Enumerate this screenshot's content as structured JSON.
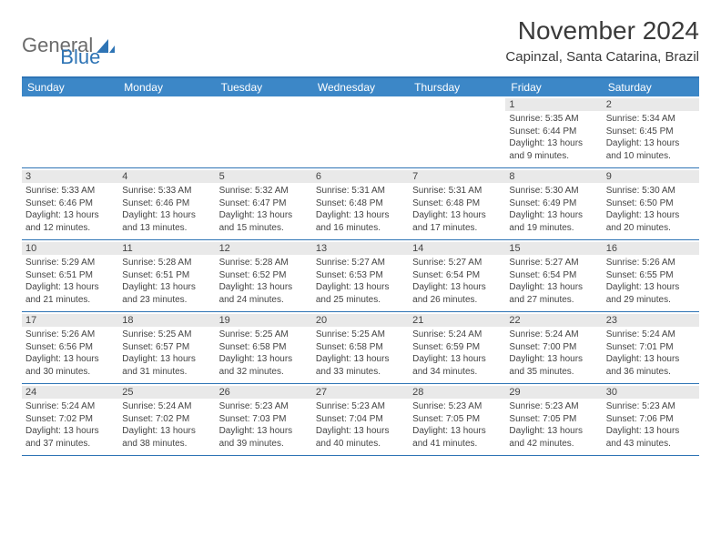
{
  "brand": {
    "general": "General",
    "blue": "Blue"
  },
  "title": "November 2024",
  "location": "Capinzal, Santa Catarina, Brazil",
  "colors": {
    "accent": "#2e74b5",
    "header_bg": "#3c87c7",
    "band_bg": "#e9e9e9",
    "text": "#444444",
    "border": "#2e74b5"
  },
  "typography": {
    "title_size": 28,
    "location_size": 15,
    "dow_size": 12,
    "body_size": 10
  },
  "calendar": {
    "type": "table",
    "dow": [
      "Sunday",
      "Monday",
      "Tuesday",
      "Wednesday",
      "Thursday",
      "Friday",
      "Saturday"
    ],
    "weeks": [
      [
        {
          "blank": true
        },
        {
          "blank": true
        },
        {
          "blank": true
        },
        {
          "blank": true
        },
        {
          "blank": true
        },
        {
          "n": "1",
          "sunrise": "Sunrise: 5:35 AM",
          "sunset": "Sunset: 6:44 PM",
          "daylight": "Daylight: 13 hours and 9 minutes."
        },
        {
          "n": "2",
          "sunrise": "Sunrise: 5:34 AM",
          "sunset": "Sunset: 6:45 PM",
          "daylight": "Daylight: 13 hours and 10 minutes."
        }
      ],
      [
        {
          "n": "3",
          "sunrise": "Sunrise: 5:33 AM",
          "sunset": "Sunset: 6:46 PM",
          "daylight": "Daylight: 13 hours and 12 minutes."
        },
        {
          "n": "4",
          "sunrise": "Sunrise: 5:33 AM",
          "sunset": "Sunset: 6:46 PM",
          "daylight": "Daylight: 13 hours and 13 minutes."
        },
        {
          "n": "5",
          "sunrise": "Sunrise: 5:32 AM",
          "sunset": "Sunset: 6:47 PM",
          "daylight": "Daylight: 13 hours and 15 minutes."
        },
        {
          "n": "6",
          "sunrise": "Sunrise: 5:31 AM",
          "sunset": "Sunset: 6:48 PM",
          "daylight": "Daylight: 13 hours and 16 minutes."
        },
        {
          "n": "7",
          "sunrise": "Sunrise: 5:31 AM",
          "sunset": "Sunset: 6:48 PM",
          "daylight": "Daylight: 13 hours and 17 minutes."
        },
        {
          "n": "8",
          "sunrise": "Sunrise: 5:30 AM",
          "sunset": "Sunset: 6:49 PM",
          "daylight": "Daylight: 13 hours and 19 minutes."
        },
        {
          "n": "9",
          "sunrise": "Sunrise: 5:30 AM",
          "sunset": "Sunset: 6:50 PM",
          "daylight": "Daylight: 13 hours and 20 minutes."
        }
      ],
      [
        {
          "n": "10",
          "sunrise": "Sunrise: 5:29 AM",
          "sunset": "Sunset: 6:51 PM",
          "daylight": "Daylight: 13 hours and 21 minutes."
        },
        {
          "n": "11",
          "sunrise": "Sunrise: 5:28 AM",
          "sunset": "Sunset: 6:51 PM",
          "daylight": "Daylight: 13 hours and 23 minutes."
        },
        {
          "n": "12",
          "sunrise": "Sunrise: 5:28 AM",
          "sunset": "Sunset: 6:52 PM",
          "daylight": "Daylight: 13 hours and 24 minutes."
        },
        {
          "n": "13",
          "sunrise": "Sunrise: 5:27 AM",
          "sunset": "Sunset: 6:53 PM",
          "daylight": "Daylight: 13 hours and 25 minutes."
        },
        {
          "n": "14",
          "sunrise": "Sunrise: 5:27 AM",
          "sunset": "Sunset: 6:54 PM",
          "daylight": "Daylight: 13 hours and 26 minutes."
        },
        {
          "n": "15",
          "sunrise": "Sunrise: 5:27 AM",
          "sunset": "Sunset: 6:54 PM",
          "daylight": "Daylight: 13 hours and 27 minutes."
        },
        {
          "n": "16",
          "sunrise": "Sunrise: 5:26 AM",
          "sunset": "Sunset: 6:55 PM",
          "daylight": "Daylight: 13 hours and 29 minutes."
        }
      ],
      [
        {
          "n": "17",
          "sunrise": "Sunrise: 5:26 AM",
          "sunset": "Sunset: 6:56 PM",
          "daylight": "Daylight: 13 hours and 30 minutes."
        },
        {
          "n": "18",
          "sunrise": "Sunrise: 5:25 AM",
          "sunset": "Sunset: 6:57 PM",
          "daylight": "Daylight: 13 hours and 31 minutes."
        },
        {
          "n": "19",
          "sunrise": "Sunrise: 5:25 AM",
          "sunset": "Sunset: 6:58 PM",
          "daylight": "Daylight: 13 hours and 32 minutes."
        },
        {
          "n": "20",
          "sunrise": "Sunrise: 5:25 AM",
          "sunset": "Sunset: 6:58 PM",
          "daylight": "Daylight: 13 hours and 33 minutes."
        },
        {
          "n": "21",
          "sunrise": "Sunrise: 5:24 AM",
          "sunset": "Sunset: 6:59 PM",
          "daylight": "Daylight: 13 hours and 34 minutes."
        },
        {
          "n": "22",
          "sunrise": "Sunrise: 5:24 AM",
          "sunset": "Sunset: 7:00 PM",
          "daylight": "Daylight: 13 hours and 35 minutes."
        },
        {
          "n": "23",
          "sunrise": "Sunrise: 5:24 AM",
          "sunset": "Sunset: 7:01 PM",
          "daylight": "Daylight: 13 hours and 36 minutes."
        }
      ],
      [
        {
          "n": "24",
          "sunrise": "Sunrise: 5:24 AM",
          "sunset": "Sunset: 7:02 PM",
          "daylight": "Daylight: 13 hours and 37 minutes."
        },
        {
          "n": "25",
          "sunrise": "Sunrise: 5:24 AM",
          "sunset": "Sunset: 7:02 PM",
          "daylight": "Daylight: 13 hours and 38 minutes."
        },
        {
          "n": "26",
          "sunrise": "Sunrise: 5:23 AM",
          "sunset": "Sunset: 7:03 PM",
          "daylight": "Daylight: 13 hours and 39 minutes."
        },
        {
          "n": "27",
          "sunrise": "Sunrise: 5:23 AM",
          "sunset": "Sunset: 7:04 PM",
          "daylight": "Daylight: 13 hours and 40 minutes."
        },
        {
          "n": "28",
          "sunrise": "Sunrise: 5:23 AM",
          "sunset": "Sunset: 7:05 PM",
          "daylight": "Daylight: 13 hours and 41 minutes."
        },
        {
          "n": "29",
          "sunrise": "Sunrise: 5:23 AM",
          "sunset": "Sunset: 7:05 PM",
          "daylight": "Daylight: 13 hours and 42 minutes."
        },
        {
          "n": "30",
          "sunrise": "Sunrise: 5:23 AM",
          "sunset": "Sunset: 7:06 PM",
          "daylight": "Daylight: 13 hours and 43 minutes."
        }
      ]
    ]
  }
}
